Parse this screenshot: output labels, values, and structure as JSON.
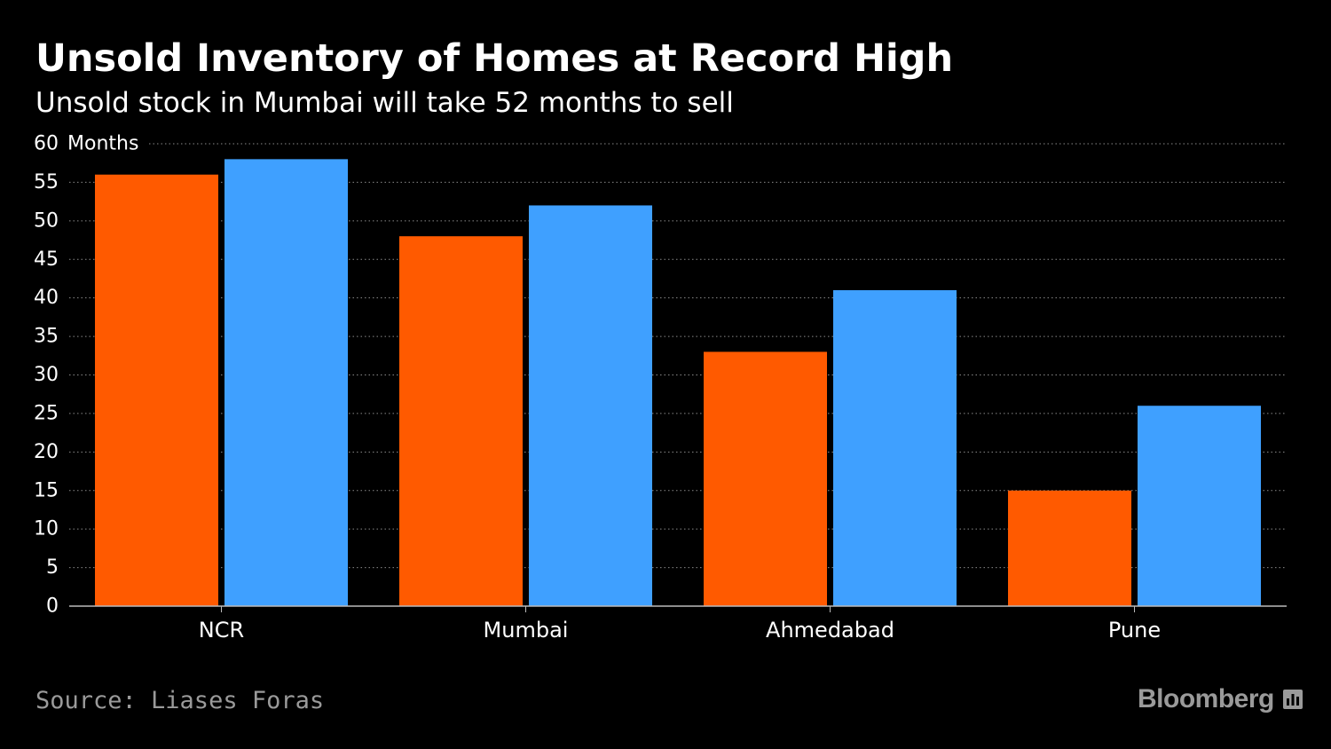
{
  "header": {
    "title": "Unsold Inventory of Homes at Record High",
    "subtitle": "Unsold stock in Mumbai will take 52 months to sell"
  },
  "footer": {
    "source": "Source: Liases Foras",
    "brand": "Bloomberg",
    "brand_icon": "bloomberg-chart-icon"
  },
  "chart_data": {
    "type": "bar",
    "categories": [
      "NCR",
      "Mumbai",
      "Ahmedabad",
      "Pune"
    ],
    "series": [
      {
        "values": [
          56,
          48,
          33,
          15
        ],
        "color": "#ff5a00"
      },
      {
        "values": [
          58,
          52,
          41,
          26
        ],
        "color": "#3fa0ff"
      }
    ],
    "ylabel": "Months",
    "ylim": [
      0,
      60
    ],
    "yticks": [
      0,
      5,
      10,
      15,
      20,
      25,
      30,
      35,
      40,
      45,
      50,
      55,
      60
    ],
    "grid": true,
    "grid_style": "dotted",
    "legend": "none"
  }
}
